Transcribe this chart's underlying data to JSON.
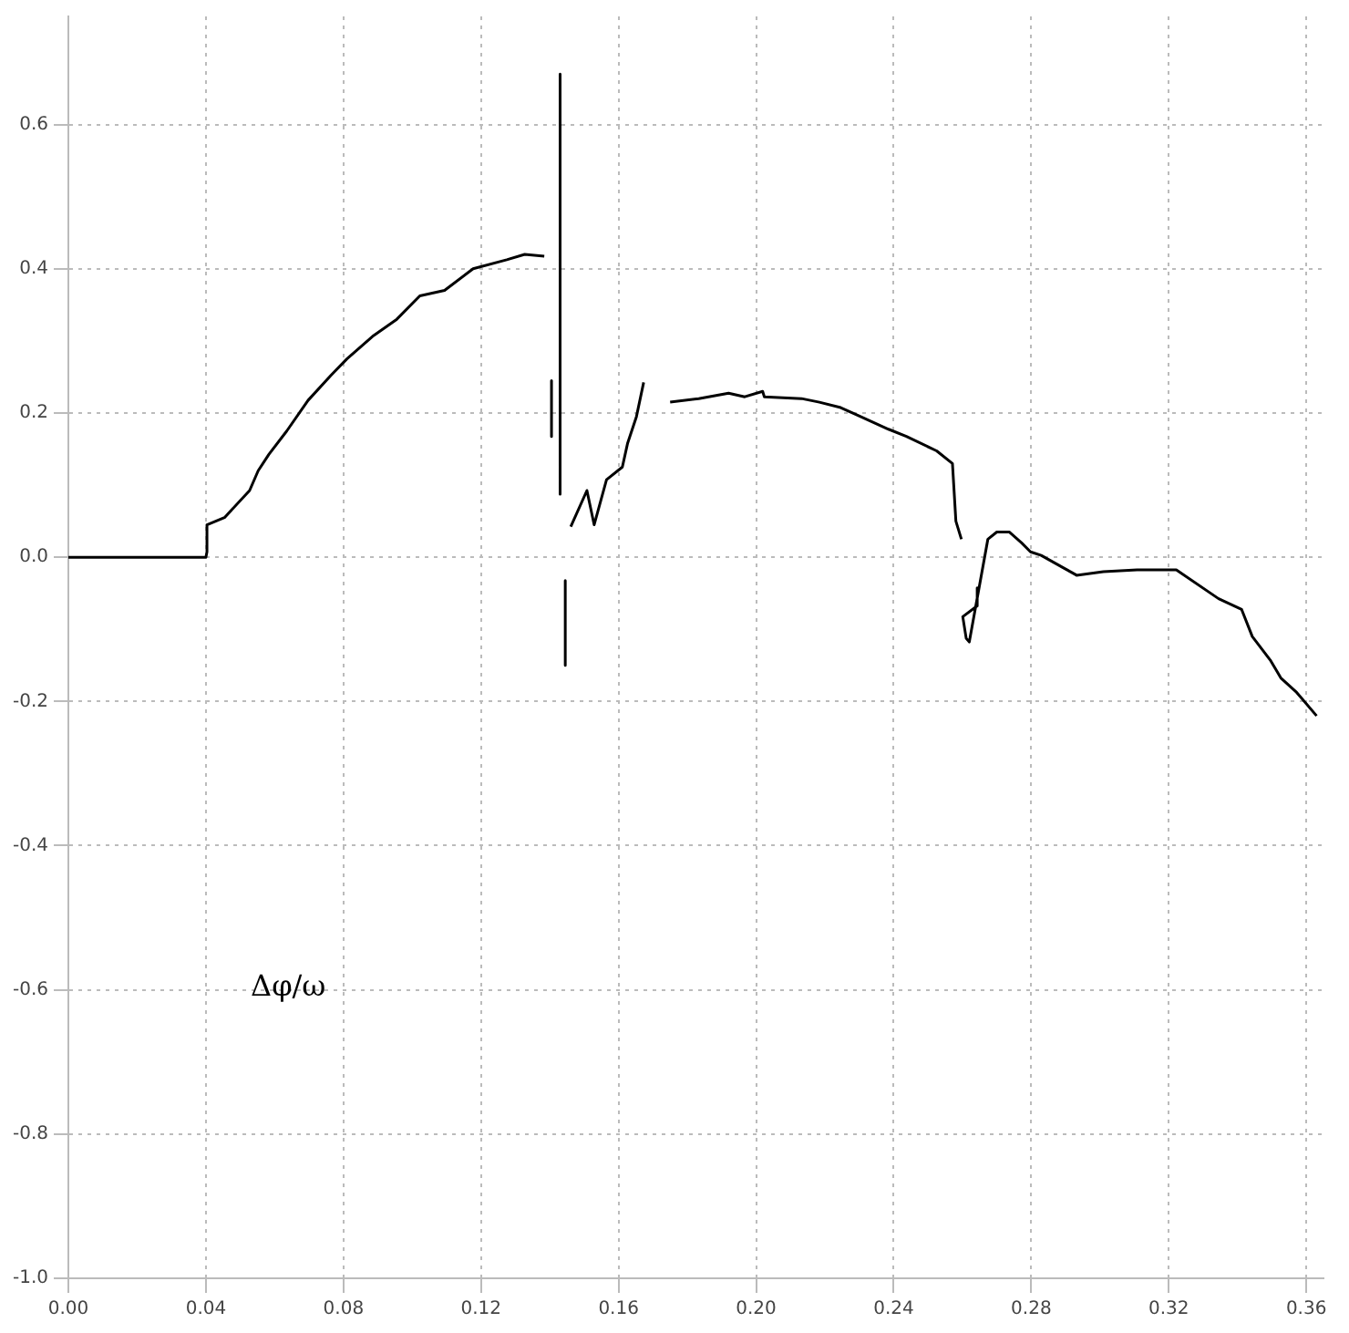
{
  "chart_data": {
    "type": "line",
    "x": [
      0,
      0.04,
      0.0403,
      0.0403,
      0.0454,
      0.0527,
      0.0552,
      0.0583,
      0.0635,
      0.0697,
      0.0764,
      0.081,
      0.0888,
      0.0955,
      0.1022,
      0.1094,
      0.1177,
      0.1275,
      0.1327,
      0.1384,
      0.139,
      0.1405,
      0.1405,
      0.141,
      0.143,
      0.143,
      0.144,
      0.1445,
      0.1445,
      0.145,
      0.1461,
      0.1508,
      0.1529,
      0.1565,
      0.1611,
      0.1626,
      0.1652,
      0.1673,
      0.171,
      0.175,
      0.1833,
      0.192,
      0.1967,
      0.2019,
      0.2024,
      0.2132,
      0.2184,
      0.2246,
      0.2292,
      0.2385,
      0.2437,
      0.2525,
      0.2571,
      0.2581,
      0.2597,
      0.26,
      0.2643,
      0.2643,
      0.2601,
      0.2611,
      0.262,
      0.2674,
      0.27,
      0.2736,
      0.2772,
      0.2798,
      0.2829,
      0.2932,
      0.301,
      0.3108,
      0.3222,
      0.3345,
      0.3412,
      0.3443,
      0.3495,
      0.3526,
      0.3572,
      0.363
    ],
    "values": [
      0,
      0,
      0.0075,
      0.045,
      0.055,
      0.0925,
      0.12,
      0.1425,
      0.175,
      0.2175,
      0.2525,
      0.275,
      0.3075,
      0.33,
      0.3625,
      0.37,
      0.4,
      0.4125,
      0.42,
      0.4175,
      null,
      0.245,
      0.1675,
      null,
      0.67,
      0.0875,
      null,
      -0.0325,
      -0.15,
      null,
      0.0425,
      0.0925,
      0.045,
      0.1075,
      0.125,
      0.1575,
      0.195,
      0.2425,
      null,
      0.215,
      0.22,
      0.2275,
      0.2225,
      0.23,
      0.2225,
      0.22,
      0.215,
      0.2075,
      0.1975,
      0.1775,
      0.1675,
      0.1475,
      0.13,
      0.05,
      0.025,
      null,
      -0.0425,
      -0.0675,
      -0.0825,
      -0.1125,
      -0.1175,
      0.025,
      0.035,
      0.035,
      0.02,
      0.0075,
      0.0025,
      -0.025,
      -0.02,
      -0.0175,
      -0.0175,
      -0.0575,
      -0.0725,
      -0.11,
      -0.1425,
      -0.1675,
      -0.1875,
      -0.22
    ],
    "color": "#000000",
    "marker": "none",
    "line_style": "solid",
    "xlim": [
      0,
      0.365
    ],
    "xticks": [
      {
        "value": 0,
        "label": "0.00"
      },
      {
        "value": 0.04,
        "label": "0.04"
      },
      {
        "value": 0.08,
        "label": "0.08"
      },
      {
        "value": 0.12,
        "label": "0.12"
      },
      {
        "value": 0.16,
        "label": "0.16"
      },
      {
        "value": 0.2,
        "label": "0.20"
      },
      {
        "value": 0.24,
        "label": "0.24"
      },
      {
        "value": 0.28,
        "label": "0.28"
      },
      {
        "value": 0.32,
        "label": "0.32"
      },
      {
        "value": 0.36,
        "label": "0.36"
      }
    ],
    "ylim": [
      -1,
      0.75
    ],
    "yticks": [
      {
        "value": -1,
        "label": "-1.0"
      },
      -0.8,
      -0.6,
      -0.4,
      -0.2,
      {
        "value": 0,
        "label": "0.0"
      },
      0.2,
      0.4,
      0.6
    ],
    "grid": true,
    "legend": false,
    "annotations": [
      "Δφ/ω"
    ]
  }
}
